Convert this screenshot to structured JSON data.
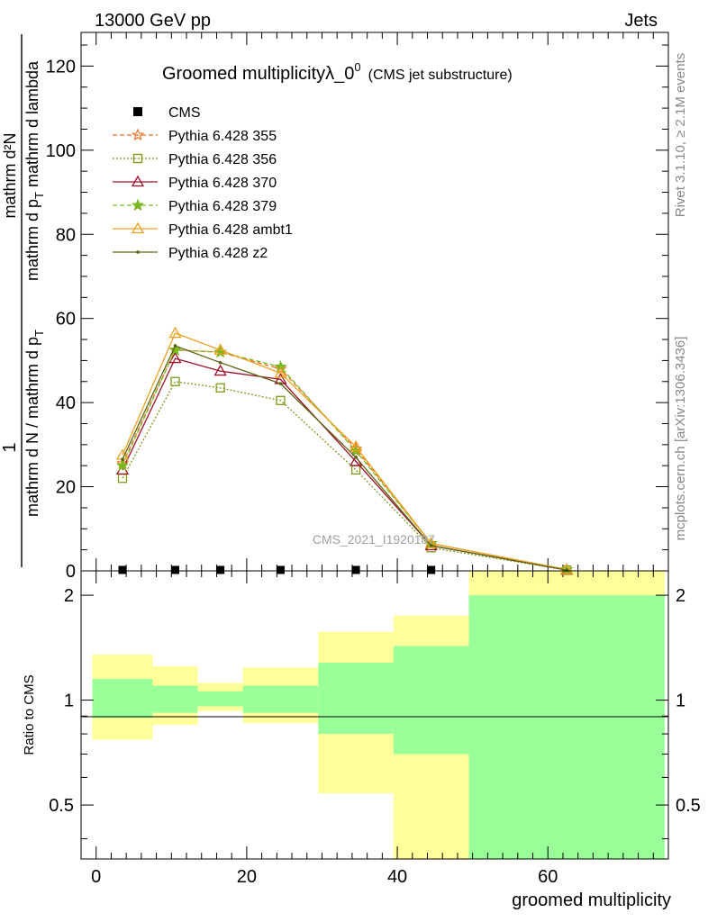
{
  "header": {
    "left": "13000 GeV pp",
    "right": "Jets"
  },
  "side_labels": {
    "rivet": "Rivet 3.1.10, ≥ 2.1M events",
    "mcplots": "mcplots.cern.ch [arXiv:1306.3436]"
  },
  "watermark": "CMS_2021_I1920187",
  "chart_data": {
    "type": "line",
    "title": "Groomed multiplicityλ_0",
    "title_sup": "0",
    "subtitle": "(CMS jet substructure)",
    "ylabel_num": "1",
    "ylabel_den": "mathrm d N / mathrm d p",
    "ylabel_den_sub": "T",
    "ylabel_num_top": "mathrm d²N",
    "ylabel_den_top": "mathrm d p",
    "ylabel_den_top_sub": "T",
    "ylabel_den_top_rest": " mathrm d lambda",
    "xlabel": "groomed multiplicity",
    "ratio_ylabel": "Ratio to CMS",
    "xlim": [
      -2,
      76
    ],
    "ylim": [
      0,
      128
    ],
    "ratio_ylim": [
      0.35,
      2.35
    ],
    "x_ticks": [
      "0",
      "20",
      "40",
      "60"
    ],
    "y_ticks": [
      "20",
      "40",
      "60",
      "80",
      "100",
      "120"
    ],
    "ratio_ticks": [
      "0.5",
      "1",
      "2"
    ],
    "x": [
      3.5,
      10.5,
      16.5,
      24.5,
      34.5,
      44.5,
      62.5
    ],
    "bin_edges": [
      -0.5,
      7.5,
      13.5,
      19.5,
      29.5,
      39.5,
      49.5,
      75.5
    ],
    "cms": {
      "name": "CMS",
      "values": [
        0,
        0,
        0,
        0,
        0,
        0,
        0
      ]
    },
    "series": [
      {
        "name": "Pythia 6.428 355",
        "color": "#ee6a1d",
        "dash": "5,3",
        "marker": "star-open",
        "values": [
          25.5,
          52.5,
          52.0,
          48.0,
          29.0,
          6.5,
          0.3
        ]
      },
      {
        "name": "Pythia 6.428 356",
        "color": "#7a9a18",
        "dash": "2,2",
        "marker": "square-open",
        "values": [
          22.0,
          45.0,
          43.5,
          40.5,
          24.0,
          5.5,
          0.2
        ]
      },
      {
        "name": "Pythia 6.428 370",
        "color": "#a01028",
        "dash": "",
        "marker": "triangle-open",
        "values": [
          24.0,
          50.5,
          47.5,
          45.5,
          26.0,
          6.0,
          0.2
        ]
      },
      {
        "name": "Pythia 6.428 379",
        "color": "#7ab81e",
        "dash": "5,3",
        "marker": "star",
        "values": [
          25.0,
          52.5,
          52.0,
          48.5,
          28.5,
          6.5,
          0.3
        ]
      },
      {
        "name": "Pythia 6.428 ambt1",
        "color": "#f0a020",
        "dash": "",
        "marker": "triangle-open",
        "values": [
          27.5,
          56.5,
          52.5,
          47.0,
          29.5,
          6.5,
          0.3
        ]
      },
      {
        "name": "Pythia 6.428 z2",
        "color": "#5c6414",
        "dash": "",
        "marker": "dot",
        "values": [
          26.5,
          53.5,
          49.5,
          44.5,
          27.0,
          6.0,
          0.2
        ]
      }
    ],
    "ratio_bands": {
      "inner_color": "#99ff99",
      "outer_color": "#ffff99",
      "inner_low": [
        0.89,
        0.92,
        0.96,
        0.92,
        0.8,
        0.7,
        0.35
      ],
      "inner_high": [
        1.15,
        1.1,
        1.06,
        1.1,
        1.28,
        1.43,
        2.0
      ],
      "outer_low": [
        0.77,
        0.85,
        0.93,
        0.86,
        0.54,
        0.35,
        0.35
      ],
      "outer_high": [
        1.35,
        1.25,
        1.12,
        1.24,
        1.57,
        1.75,
        2.35
      ]
    }
  }
}
